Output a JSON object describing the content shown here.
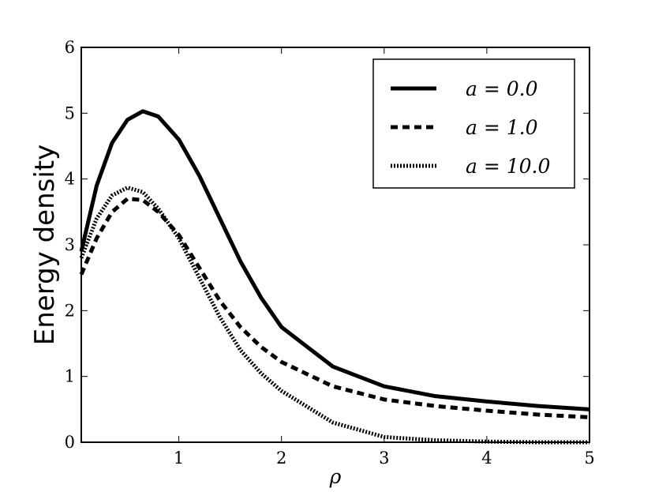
{
  "chart_data": {
    "type": "line",
    "xlabel": "ρ",
    "ylabel": "Energy density",
    "x": [
      0.05,
      0.2,
      0.35,
      0.5,
      0.65,
      0.8,
      1.0,
      1.2,
      1.4,
      1.6,
      1.8,
      2.0,
      2.5,
      3.0,
      3.5,
      4.0,
      4.5,
      5.0
    ],
    "series": [
      {
        "name": "a = 0.0",
        "color": "#000000",
        "linestyle": "solid",
        "values": [
          2.9,
          3.9,
          4.55,
          4.9,
          5.03,
          4.95,
          4.6,
          4.05,
          3.4,
          2.75,
          2.2,
          1.75,
          1.15,
          0.85,
          0.7,
          0.62,
          0.55,
          0.5
        ]
      },
      {
        "name": "a = 1.0",
        "color": "#000000",
        "linestyle": "dashed",
        "values": [
          2.55,
          3.1,
          3.5,
          3.7,
          3.68,
          3.5,
          3.15,
          2.65,
          2.15,
          1.75,
          1.45,
          1.22,
          0.85,
          0.65,
          0.55,
          0.48,
          0.42,
          0.38
        ]
      },
      {
        "name": "a = 10.0",
        "color": "#000000",
        "linestyle": "dotted",
        "values": [
          2.8,
          3.4,
          3.75,
          3.87,
          3.8,
          3.55,
          3.1,
          2.5,
          1.9,
          1.4,
          1.05,
          0.78,
          0.3,
          0.08,
          0.03,
          0.01,
          0.0,
          0.0
        ]
      }
    ],
    "xlim": [
      0.05,
      5
    ],
    "xticks": [
      1,
      2,
      3,
      4,
      5
    ],
    "ylim": [
      0,
      6
    ],
    "yticks": [
      0,
      1,
      2,
      3,
      4,
      5,
      6
    ],
    "legend": "upper right"
  }
}
